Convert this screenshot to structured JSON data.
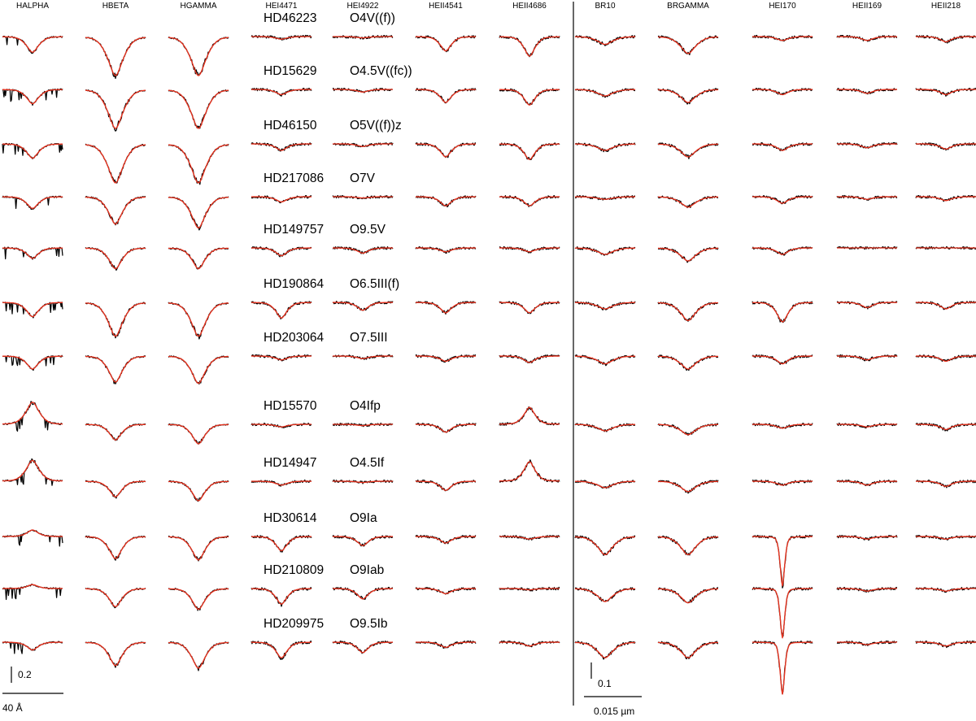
{
  "chart_data": {
    "type": "line",
    "colors": {
      "observed": "#000000",
      "model": "#e8321e"
    },
    "columns": [
      "HALPHA",
      "HBETA",
      "HGAMMA",
      "HEI4471",
      "HEI4922",
      "HEII4541",
      "HEII4686",
      "BR10",
      "BRGAMMA",
      "HEI170",
      "HEII169",
      "HEII218"
    ],
    "stars": [
      {
        "name": "HD46223",
        "spectral_type": "O4V((f))"
      },
      {
        "name": "HD15629",
        "spectral_type": "O4.5V((fc))"
      },
      {
        "name": "HD46150",
        "spectral_type": "O5V((f))z"
      },
      {
        "name": "HD217086",
        "spectral_type": "O7V"
      },
      {
        "name": "HD149757",
        "spectral_type": "O9.5V"
      },
      {
        "name": "HD190864",
        "spectral_type": "O6.5III(f)"
      },
      {
        "name": "HD203064",
        "spectral_type": "O7.5III"
      },
      {
        "name": "HD15570",
        "spectral_type": "O4Ifp"
      },
      {
        "name": "HD14947",
        "spectral_type": "O4.5If"
      },
      {
        "name": "HD30614",
        "spectral_type": "O9Ia"
      },
      {
        "name": "HD210809",
        "spectral_type": "O9Iab"
      },
      {
        "name": "HD209975",
        "spectral_type": "O9.5Ib"
      }
    ],
    "line_depth": [
      [
        0.12,
        0.3,
        0.3,
        0.02,
        0.01,
        0.11,
        0.15,
        0.06,
        0.13,
        0.03,
        0.03,
        0.04
      ],
      [
        0.11,
        0.3,
        0.3,
        0.04,
        0.02,
        0.1,
        0.12,
        0.05,
        0.1,
        0.04,
        0.03,
        0.04
      ],
      [
        0.11,
        0.3,
        0.3,
        0.05,
        0.02,
        0.1,
        0.12,
        0.05,
        0.1,
        0.05,
        0.03,
        0.04
      ],
      [
        0.09,
        0.21,
        0.24,
        0.04,
        0.01,
        0.07,
        0.07,
        0.02,
        0.08,
        0.05,
        0.02,
        0.03
      ],
      [
        0.08,
        0.16,
        0.16,
        0.06,
        0.04,
        0.03,
        0.03,
        0.05,
        0.1,
        0.05,
        0.0,
        0.0
      ],
      [
        0.11,
        0.26,
        0.26,
        0.12,
        0.06,
        0.08,
        0.08,
        0.05,
        0.14,
        0.15,
        0.04,
        0.05
      ],
      [
        0.1,
        0.2,
        0.21,
        0.03,
        0.02,
        0.04,
        0.05,
        0.06,
        0.1,
        0.06,
        0.03,
        0.04
      ],
      [
        -0.17,
        0.12,
        0.15,
        0.02,
        0.01,
        0.06,
        -0.13,
        0.05,
        0.08,
        0.03,
        0.02,
        0.04
      ],
      [
        -0.16,
        0.12,
        0.15,
        0.03,
        0.01,
        0.07,
        -0.15,
        0.05,
        0.08,
        0.03,
        0.03,
        0.04
      ],
      [
        -0.05,
        0.17,
        0.18,
        0.11,
        0.07,
        0.05,
        0.02,
        0.14,
        0.14,
        0.38,
        0.02,
        0.02
      ],
      [
        -0.03,
        0.14,
        0.16,
        0.12,
        0.08,
        0.04,
        0.01,
        0.1,
        0.11,
        0.38,
        0.02,
        0.02
      ],
      [
        0.06,
        0.18,
        0.2,
        0.12,
        0.08,
        0.04,
        0.03,
        0.12,
        0.12,
        0.4,
        0.02,
        0.03
      ]
    ],
    "scale_bars": [
      {
        "region": "optical",
        "vertical": "0.2",
        "horizontal": "40 Å"
      },
      {
        "region": "infrared",
        "vertical": "0.1",
        "horizontal": "0.015 µm"
      }
    ]
  }
}
